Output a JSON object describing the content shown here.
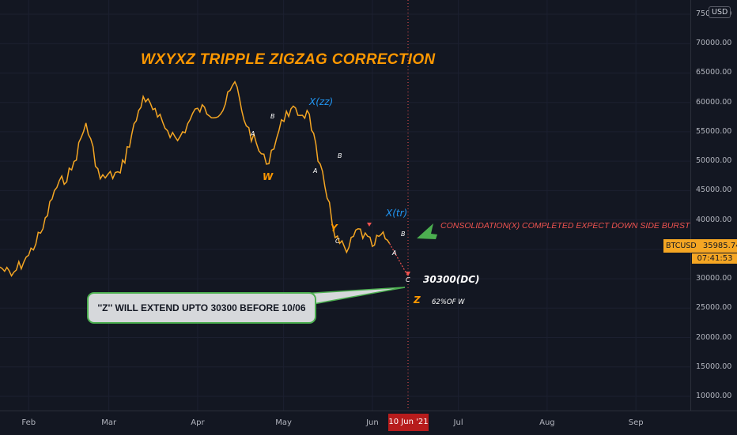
{
  "chart": {
    "title": "WXYXZ TRIPPLE ZIGZAG CORRECTION",
    "symbol": "BTCUSD",
    "last_price": "35985.74",
    "countdown": "07:41:53",
    "currency_badge": "USD",
    "cursor_date": "10 Jun '21"
  },
  "price_axis": [
    "75000.00",
    "70000.00",
    "65000.00",
    "60000.00",
    "55000.00",
    "50000.00",
    "45000.00",
    "40000.00",
    "35000.00",
    "30000.00",
    "25000.00",
    "20000.00",
    "15000.00",
    "10000.00"
  ],
  "time_axis": [
    "Feb",
    "Mar",
    "Apr",
    "May",
    "Jun",
    "Jul",
    "Aug",
    "Sep"
  ],
  "annotations": {
    "w": "W",
    "a1": "A",
    "b1": "B",
    "xzz": "X(zz)",
    "a2": "A",
    "b2": "B",
    "y": "Y",
    "c2": "C",
    "xtr": "X(tr)",
    "b3": "B",
    "a3": "A",
    "c3": "C",
    "target": "30300(DC)",
    "z": "Z",
    "fib": "62%OF W",
    "consolidation": "CONSOLIDATION(X) COMPLETED  EXPECT DOWN SIDE  BURST",
    "callout": "''Z'' WILL EXTEND UPTO 30300 BEFORE 10/06"
  },
  "colors": {
    "background": "#131722",
    "price_line": "#f5a623",
    "title": "#ff9800",
    "wave_blue": "#2196f3",
    "wave_orange": "#ff9800",
    "warning_red": "#ef5350",
    "arrow_green": "#4caf50",
    "date_marker": "#b71c1c"
  },
  "chart_data": {
    "type": "line",
    "series": [
      {
        "name": "BTCUSD",
        "x": [
          "2021-01-22",
          "2021-01-26",
          "2021-02-01",
          "2021-02-06",
          "2021-02-10",
          "2021-02-16",
          "2021-02-21",
          "2021-02-26",
          "2021-03-05",
          "2021-03-13",
          "2021-03-18",
          "2021-03-25",
          "2021-04-01",
          "2021-04-09",
          "2021-04-14",
          "2021-04-18",
          "2021-04-25",
          "2021-05-02",
          "2021-05-10",
          "2021-05-13",
          "2021-05-17",
          "2021-05-19",
          "2021-05-23",
          "2021-05-27",
          "2021-06-01",
          "2021-06-04",
          "2021-06-07"
        ],
        "values": [
          32000,
          30500,
          34000,
          38500,
          45000,
          48500,
          56500,
          47000,
          48000,
          61000,
          57500,
          53500,
          59000,
          58000,
          63500,
          56000,
          49500,
          58500,
          58000,
          50000,
          43000,
          37000,
          34500,
          38500,
          35500,
          37500,
          36000
        ]
      }
    ],
    "ylim": [
      10000,
      75000
    ],
    "xlim": [
      "2021-01-22",
      "2021-09-20"
    ]
  }
}
